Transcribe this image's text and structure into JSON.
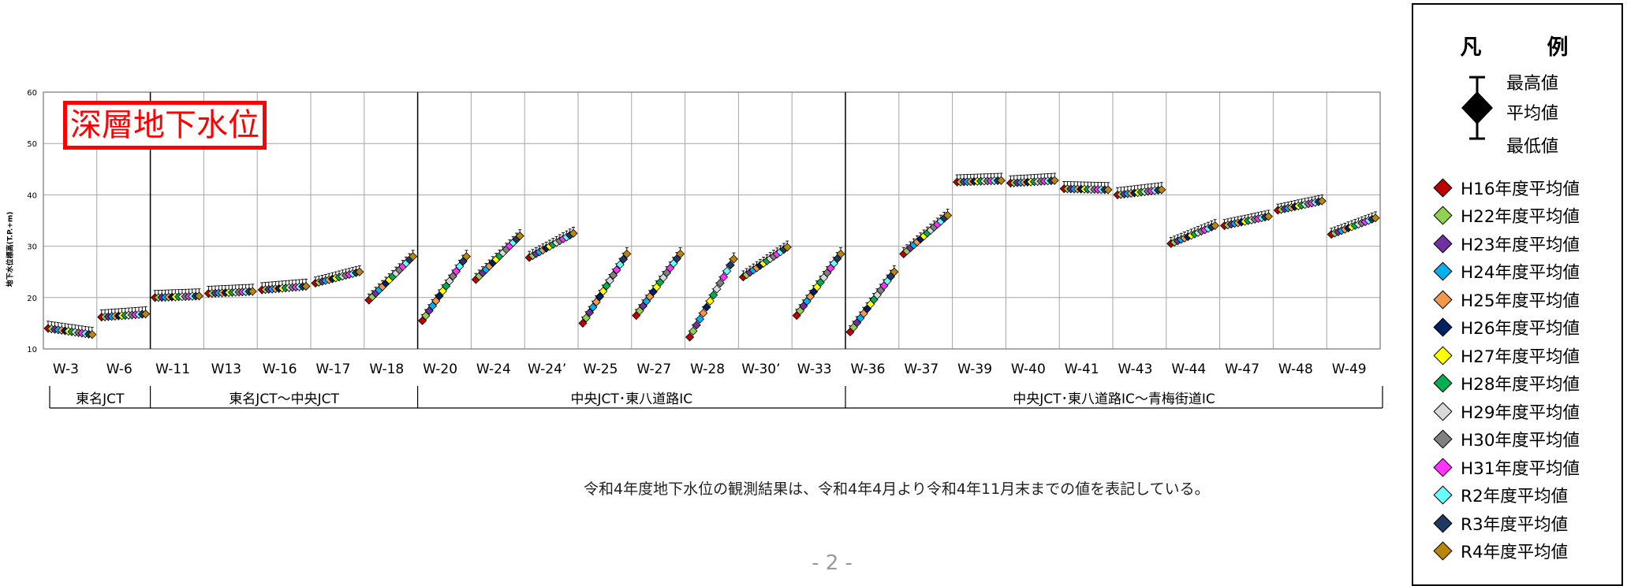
{
  "chart_data": {
    "type": "scatter",
    "title": "深層地下水位",
    "ylabel": "地下水位標高(T.P.+m)",
    "ylim": [
      10,
      60
    ],
    "yticks": [
      10,
      20,
      30,
      40,
      50,
      60
    ],
    "grid": true,
    "legend_position": "right",
    "wells": [
      "W-3",
      "W-6",
      "W-11",
      "W13",
      "W-16",
      "W-17",
      "W-18",
      "W-20",
      "W-24",
      "W-24’",
      "W-25",
      "W-27",
      "W-28",
      "W-30’",
      "W-33",
      "W-36",
      "W-37",
      "W-39",
      "W-40",
      "W-41",
      "W-43",
      "W-44",
      "W-47",
      "W-48",
      "W-49"
    ],
    "groups": [
      {
        "label": "東名JCT",
        "wells": [
          "W-3",
          "W-6"
        ]
      },
      {
        "label": "東名JCT～中央JCT",
        "wells": [
          "W-11",
          "W13",
          "W-16",
          "W-17",
          "W-18"
        ]
      },
      {
        "label": "中央JCT･東八道路IC",
        "wells": [
          "W-20",
          "W-24",
          "W-24’",
          "W-25",
          "W-27",
          "W-28",
          "W-30’",
          "W-33"
        ]
      },
      {
        "label": "中央JCT･東八道路IC～青梅街道IC",
        "wells": [
          "W-36",
          "W-37",
          "W-39",
          "W-40",
          "W-41",
          "W-43",
          "W-44",
          "W-47",
          "W-48",
          "W-49"
        ]
      }
    ],
    "series": [
      {
        "name": "H16年度平均値",
        "color": "#c00000"
      },
      {
        "name": "H22年度平均値",
        "color": "#92d050"
      },
      {
        "name": "H23年度平均値",
        "color": "#7030a0"
      },
      {
        "name": "H24年度平均値",
        "color": "#00b0f0"
      },
      {
        "name": "H25年度平均値",
        "color": "#f79646"
      },
      {
        "name": "H26年度平均値",
        "color": "#002060"
      },
      {
        "name": "H27年度平均値",
        "color": "#ffff00"
      },
      {
        "name": "H28年度平均値",
        "color": "#00b050"
      },
      {
        "name": "H29年度平均値",
        "color": "#d9d9d9"
      },
      {
        "name": "H30年度平均値",
        "color": "#808080"
      },
      {
        "name": "H31年度平均値",
        "color": "#ff33ff"
      },
      {
        "name": "R2年度平均値",
        "color": "#66ffff"
      },
      {
        "name": "R3年度平均値",
        "color": "#1f3864"
      },
      {
        "name": "R4年度平均値",
        "color": "#b8860b"
      }
    ],
    "well_ranges": [
      {
        "well": "W-3",
        "start": 14.0,
        "end": 12.8,
        "shape": "flat"
      },
      {
        "well": "W-6",
        "start": 16.2,
        "end": 16.8,
        "shape": "flat"
      },
      {
        "well": "W-11",
        "start": 20.0,
        "end": 20.3,
        "shape": "flat"
      },
      {
        "well": "W13",
        "start": 20.8,
        "end": 21.2,
        "shape": "flat"
      },
      {
        "well": "W-16",
        "start": 21.5,
        "end": 22.2,
        "shape": "flat"
      },
      {
        "well": "W-17",
        "start": 22.8,
        "end": 25.0,
        "shape": "linear"
      },
      {
        "well": "W-18",
        "start": 19.5,
        "end": 28.0,
        "shape": "linear"
      },
      {
        "well": "W-20",
        "start": 15.5,
        "end": 28.0,
        "shape": "linear"
      },
      {
        "well": "W-24",
        "start": 23.5,
        "end": 32.0,
        "shape": "linear"
      },
      {
        "well": "W-24’",
        "start": 27.8,
        "end": 32.5,
        "shape": "linear"
      },
      {
        "well": "W-25",
        "start": 15.0,
        "end": 28.5,
        "shape": "linear"
      },
      {
        "well": "W-27",
        "start": 16.5,
        "end": 28.5,
        "shape": "linear"
      },
      {
        "well": "W-28",
        "start": 12.3,
        "end": 27.5,
        "shape": "linear"
      },
      {
        "well": "W-30’",
        "start": 24.0,
        "end": 29.8,
        "shape": "linear"
      },
      {
        "well": "W-33",
        "start": 16.5,
        "end": 28.5,
        "shape": "linear"
      },
      {
        "well": "W-36",
        "start": 13.3,
        "end": 25.0,
        "shape": "linear"
      },
      {
        "well": "W-37",
        "start": 28.5,
        "end": 36.0,
        "shape": "linear"
      },
      {
        "well": "W-39",
        "start": 42.5,
        "end": 42.8,
        "shape": "flat"
      },
      {
        "well": "W-40",
        "start": 42.3,
        "end": 42.8,
        "shape": "flat"
      },
      {
        "well": "W-41",
        "start": 41.2,
        "end": 41.0,
        "shape": "flat"
      },
      {
        "well": "W-43",
        "start": 40.0,
        "end": 41.0,
        "shape": "flat"
      },
      {
        "well": "W-44",
        "start": 30.5,
        "end": 34.0,
        "shape": "linear"
      },
      {
        "well": "W-47",
        "start": 34.0,
        "end": 35.8,
        "shape": "linear"
      },
      {
        "well": "W-48",
        "start": 37.0,
        "end": 38.8,
        "shape": "linear"
      },
      {
        "well": "W-49",
        "start": 32.3,
        "end": 35.5,
        "shape": "linear"
      }
    ]
  },
  "legend": {
    "title": "凡　例",
    "max_label": "最高値",
    "mean_label": "平均値",
    "min_label": "最低値"
  },
  "note": "令和4年度地下水位の観測結果は、令和4年4月より令和4年11月末までの値を表記している。",
  "page_number": "- 2 -"
}
